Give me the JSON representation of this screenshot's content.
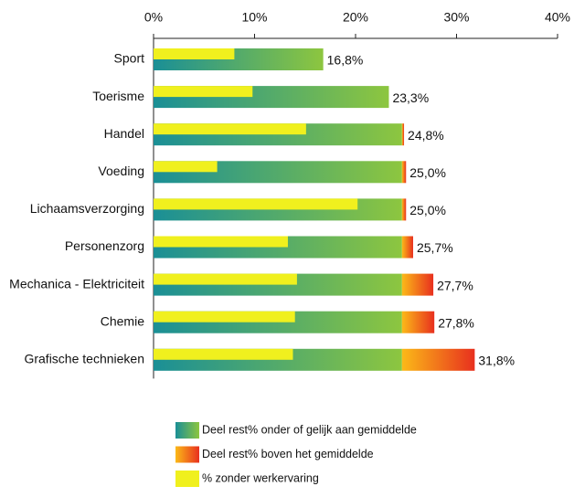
{
  "chart_data": {
    "type": "bar",
    "orientation": "horizontal",
    "categories": [
      "Sport",
      "Toerisme",
      "Handel",
      "Voeding",
      "Lichaamsverzorging",
      "Personenzorg",
      "Mechanica - Elektriciteit",
      "Chemie",
      "Grafische technieken"
    ],
    "series": [
      {
        "name": "Deel rest% onder of gelijk aan gemiddelde",
        "color": [
          "#1a8f96",
          "#8dc63f"
        ],
        "stacked": true,
        "values": [
          16.8,
          23.3,
          24.6,
          24.6,
          24.6,
          24.6,
          24.6,
          24.6,
          24.6
        ]
      },
      {
        "name": "Deel rest% boven het gemiddelde",
        "color": [
          "#fbb918",
          "#e8301e"
        ],
        "stacked": true,
        "values": [
          0,
          0,
          0.2,
          0.4,
          0.4,
          1.1,
          3.1,
          3.2,
          7.2
        ]
      },
      {
        "name": "% zonder werkervaring",
        "color": [
          "#f0f01e",
          "#f0f01e"
        ],
        "stacked": false,
        "values": [
          8.0,
          9.8,
          15.1,
          6.3,
          20.2,
          13.3,
          14.2,
          14.0,
          13.8
        ]
      }
    ],
    "totals": [
      16.8,
      23.3,
      24.8,
      25.0,
      25.0,
      25.7,
      27.7,
      27.8,
      31.8
    ],
    "total_labels": [
      "16,8%",
      "23,3%",
      "24,8%",
      "25,0%",
      "25,0%",
      "25,7%",
      "27,7%",
      "27,8%",
      "31,8%"
    ],
    "xlim": [
      0,
      40
    ],
    "xticks": [
      {
        "value": 0,
        "label": "0%"
      },
      {
        "value": 10,
        "label": "10%"
      },
      {
        "value": 20,
        "label": "20%"
      },
      {
        "value": 30,
        "label": "30%"
      },
      {
        "value": 40,
        "label": "40%"
      }
    ],
    "legend": "bottom"
  }
}
